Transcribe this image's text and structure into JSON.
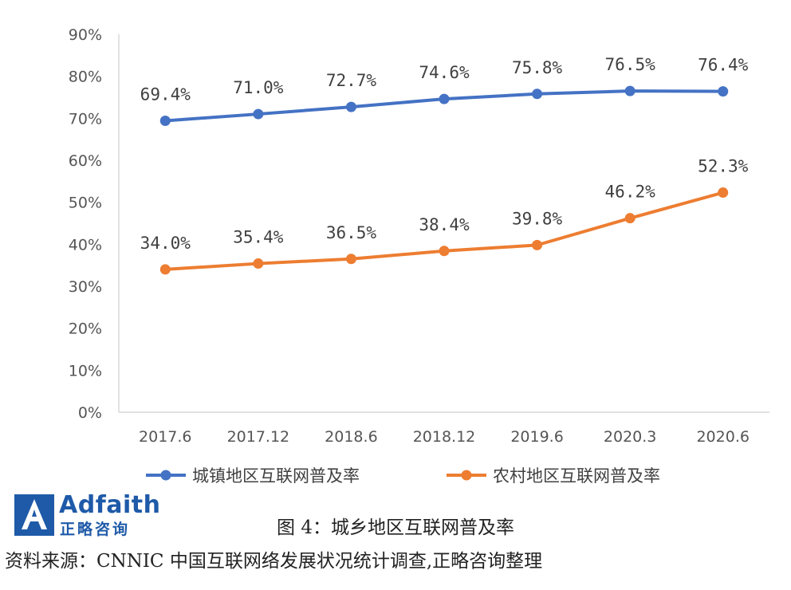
{
  "chart_data": {
    "type": "line",
    "categories": [
      "2017.6",
      "2017.12",
      "2018.6",
      "2018.12",
      "2019.6",
      "2020.3",
      "2020.6"
    ],
    "series": [
      {
        "name": "城镇地区互联网普及率",
        "color": "#4472c4",
        "values": [
          69.4,
          71.0,
          72.7,
          74.6,
          75.8,
          76.5,
          76.4
        ],
        "labels": [
          "69.4%",
          "71.0%",
          "72.7%",
          "74.6%",
          "75.8%",
          "76.5%",
          "76.4%"
        ]
      },
      {
        "name": "农村地区互联网普及率",
        "color": "#ed7d31",
        "values": [
          34.0,
          35.4,
          36.5,
          38.4,
          39.8,
          46.2,
          52.3
        ],
        "labels": [
          "34.0%",
          "35.4%",
          "36.5%",
          "38.4%",
          "39.8%",
          "46.2%",
          "52.3%"
        ]
      }
    ],
    "yticks": [
      "0%",
      "10%",
      "20%",
      "30%",
      "40%",
      "50%",
      "60%",
      "70%",
      "80%",
      "90%"
    ],
    "ylim": [
      0,
      90
    ],
    "grid": false,
    "legend": "bottom"
  },
  "caption": "图 4：城乡地区互联网普及率",
  "source": "资料来源：CNNIC 中国互联网络发展状况统计调查,正略咨询整理",
  "logo": {
    "name": "Adfaith",
    "name_cn": "正略咨询",
    "color": "#1e5aa8"
  }
}
